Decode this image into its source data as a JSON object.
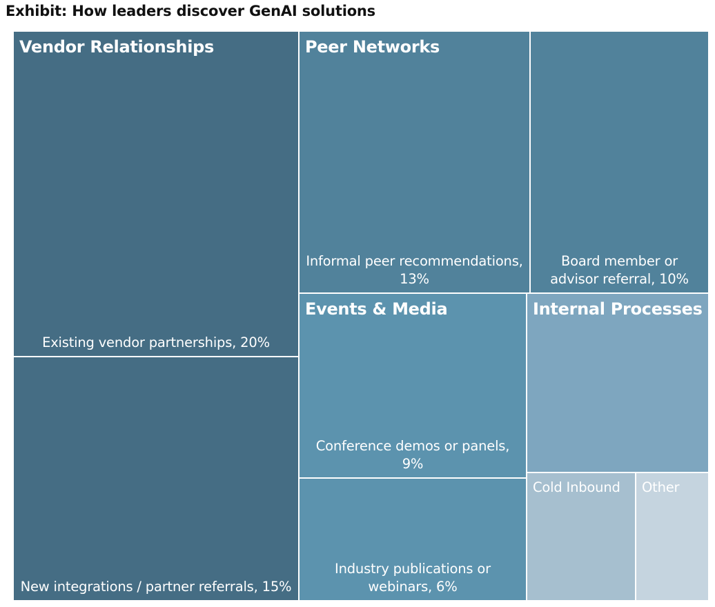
{
  "chart_data": {
    "type": "treemap",
    "title": "Exhibit: How leaders discover GenAI solutions",
    "unit": "%",
    "groups": [
      {
        "name": "Vendor Relationships",
        "color": "#456d84",
        "items": [
          {
            "label": "Existing vendor partnerships, 20%",
            "value": 20
          },
          {
            "label": "New integrations / partner referrals, 15%",
            "value": 15
          }
        ]
      },
      {
        "name": "Peer Networks",
        "color": "#51829b",
        "items": [
          {
            "label": "Informal peer recommendations, 13%",
            "value": 13
          },
          {
            "label": "Board member or advisor referral, 10%",
            "value": 10
          }
        ]
      },
      {
        "name": "Events & Media",
        "color": "#5c93ae",
        "items": [
          {
            "label": "Conference demos or panels, 9%",
            "value": 9
          },
          {
            "label": "Industry publications or webinars, 6%",
            "value": 6
          }
        ]
      },
      {
        "name": "Internal Processes",
        "color": "#7ea6bf",
        "items": [
          {
            "label": "",
            "value": 7
          }
        ]
      },
      {
        "name": "",
        "items": [
          {
            "label": "Cold Inbound",
            "value": 4,
            "color": "#a6bfcf"
          },
          {
            "label": "Other",
            "value": 3,
            "color": "#c5d4df"
          }
        ]
      }
    ]
  }
}
